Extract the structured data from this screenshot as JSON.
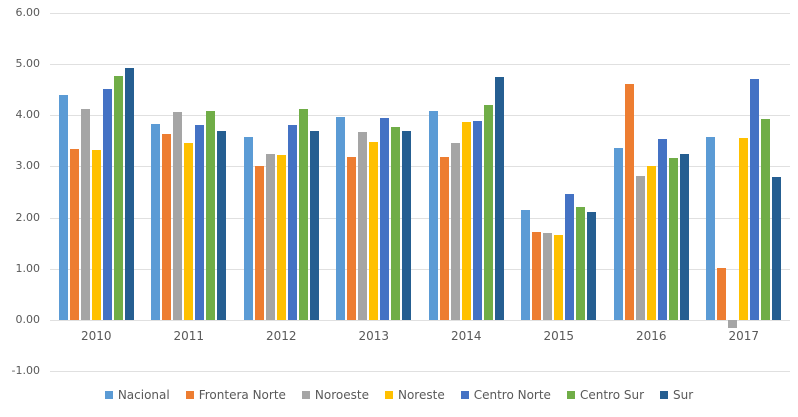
{
  "chart_data": {
    "type": "bar",
    "title": "",
    "xlabel": "",
    "ylabel": "",
    "categories": [
      "2010",
      "2011",
      "2012",
      "2013",
      "2014",
      "2015",
      "2016",
      "2017"
    ],
    "series": [
      {
        "name": "Nacional",
        "color": "#5B9BD5",
        "values": [
          4.4,
          3.82,
          3.58,
          3.97,
          4.08,
          2.14,
          3.36,
          3.58
        ]
      },
      {
        "name": "Frontera Norte",
        "color": "#ED7D31",
        "values": [
          3.35,
          3.63,
          3.01,
          3.18,
          3.18,
          1.71,
          4.62,
          1.01
        ]
      },
      {
        "name": "Noroeste",
        "color": "#A5A5A5",
        "values": [
          4.12,
          4.07,
          3.24,
          3.68,
          3.46,
          1.69,
          2.82,
          -0.16
        ]
      },
      {
        "name": "Noreste",
        "color": "#FFC000",
        "values": [
          3.33,
          3.46,
          3.23,
          3.47,
          3.86,
          1.66,
          3.01,
          3.55
        ]
      },
      {
        "name": "Centro Norte",
        "color": "#4472C4",
        "values": [
          4.52,
          3.81,
          3.81,
          3.94,
          3.88,
          2.47,
          3.53,
          4.71
        ]
      },
      {
        "name": "Centro Sur",
        "color": "#70AD47",
        "values": [
          4.76,
          4.09,
          4.12,
          3.77,
          4.21,
          2.2,
          3.16,
          3.93
        ]
      },
      {
        "name": "Sur",
        "color": "#255E91",
        "values": [
          4.93,
          3.69,
          3.69,
          3.7,
          4.74,
          2.11,
          3.24,
          2.8
        ]
      }
    ],
    "ylim": [
      -1,
      6
    ],
    "yticks": [
      {
        "value": 6,
        "label": "6.00"
      },
      {
        "value": 5,
        "label": "5.00"
      },
      {
        "value": 4,
        "label": "4.00"
      },
      {
        "value": 3,
        "label": "3.00"
      },
      {
        "value": 2,
        "label": "2.00"
      },
      {
        "value": 1,
        "label": "1.00"
      },
      {
        "value": 0,
        "label": "0.00"
      },
      {
        "value": -1,
        "label": "-1.00"
      }
    ],
    "grid": "horizontal",
    "legend_position": "bottom"
  },
  "colors": {
    "background": "#FFFFFF",
    "gridline": "#E0E0E0",
    "text": "#595959"
  }
}
